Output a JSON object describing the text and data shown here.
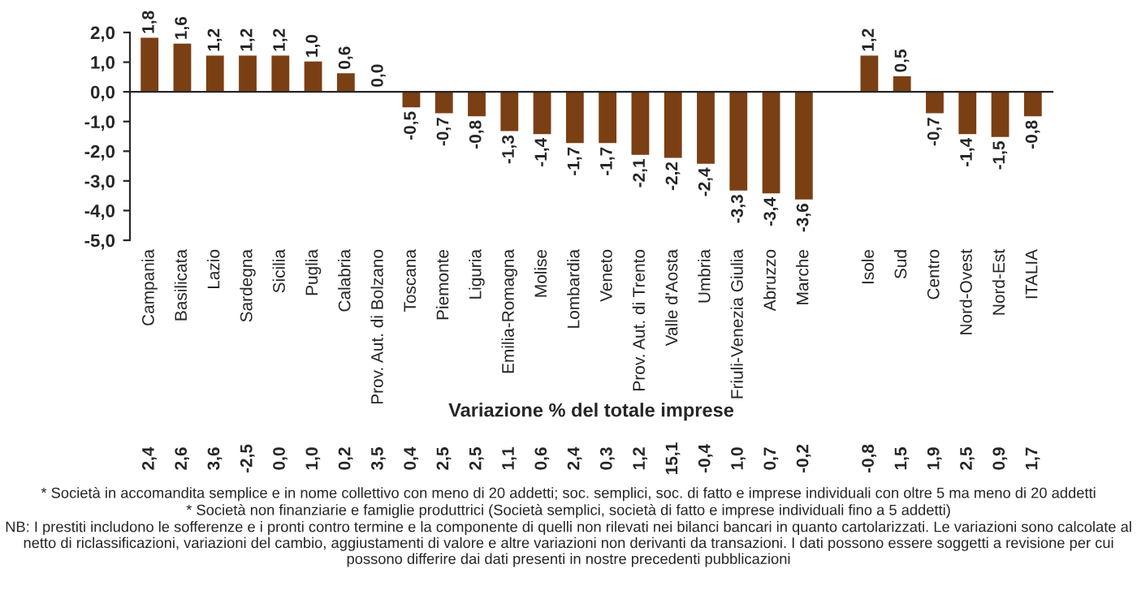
{
  "chart_data": [
    {
      "type": "bar",
      "color": "#7b3f14",
      "categories": [
        "Campania",
        "Basilicata",
        "Lazio",
        "Sardegna",
        "Sicilia",
        "Puglia",
        "Calabria",
        "Prov. Aut. di Bolzano",
        "Toscana",
        "Piemonte",
        "Liguria",
        "Emilia-Romagna",
        "Molise",
        "Lombardia",
        "Veneto",
        "Prov. Aut. di Trento",
        "Valle d'Aosta",
        "Umbria",
        "Friuli-Venezia Giulia",
        "Abruzzo",
        "Marche",
        null,
        "Isole",
        "Sud",
        "Centro",
        "Nord-Ovest",
        "Nord-Est",
        "ITALIA"
      ],
      "values": [
        1.8,
        1.6,
        1.2,
        1.2,
        1.2,
        1.0,
        0.6,
        0.0,
        -0.5,
        -0.7,
        -0.8,
        -1.3,
        -1.4,
        -1.7,
        -1.7,
        -2.1,
        -2.2,
        -2.4,
        -3.3,
        -3.4,
        -3.6,
        null,
        1.2,
        0.5,
        -0.7,
        -1.4,
        -1.5,
        -0.8
      ],
      "value_labels": [
        "1,8",
        "1,6",
        "1,2",
        "1,2",
        "1,2",
        "1,0",
        "0,6",
        "0,0",
        "-0,5",
        "-0,7",
        "-0,8",
        "-1,3",
        "-1,4",
        "-1,7",
        "-1,7",
        "-2,1",
        "-2,2",
        "-2,4",
        "-3,3",
        "-3,4",
        "-3,6",
        null,
        "1,2",
        "0,5",
        "-0,7",
        "-1,4",
        "-1,5",
        "-0,8"
      ],
      "ylim": [
        -5,
        2
      ],
      "yticks": [
        {
          "value": -5,
          "label": "-5,0"
        },
        {
          "value": -4,
          "label": "-4,0"
        },
        {
          "value": -3,
          "label": "-3,0"
        },
        {
          "value": -2,
          "label": "-2,0"
        },
        {
          "value": -1,
          "label": "-1,0"
        },
        {
          "value": 0,
          "label": "0,0"
        },
        {
          "value": 1,
          "label": "1,0"
        },
        {
          "value": 2,
          "label": "2,0"
        }
      ],
      "annotations": [
        "* Società in accomandita semplice e in nome collettivo con meno di 20 addetti; soc. semplici, soc. di fatto e imprese individuali con oltre 5 ma meno di 20 addetti",
        "* Società non finanziarie e famiglie produttrici (Società semplici, società di fatto e imprese individuali fino a 5 addetti)",
        "NB: I prestiti includono le sofferenze e i pronti contro termine e la componente di quelli non rilevati nei bilanci bancari in quanto cartolarizzati. Le variazioni sono calcolate al netto di riclassificazioni, variazioni del cambio, aggiustamenti di valore e altre variazioni non derivanti da transazioni. I dati possono essere soggetti a revisione per cui possono differire dai dati presenti in nostre precedenti pubblicazioni"
      ]
    },
    {
      "type": "other",
      "title": "Variazione % del totale imprese",
      "annotations": [
        "2,4",
        "2,6",
        "3,6",
        "-2,5",
        "0,0",
        "1,0",
        "0,2",
        "3,5",
        "0,4",
        "2,5",
        "2,5",
        "1,1",
        "0,6",
        "2,4",
        "0,3",
        "1,2",
        "15,1",
        "-0,4",
        "1,0",
        "0,7",
        "-0,2",
        null,
        "-0,8",
        "1,5",
        "1,9",
        "2,5",
        "0,9",
        "1,7"
      ]
    }
  ]
}
